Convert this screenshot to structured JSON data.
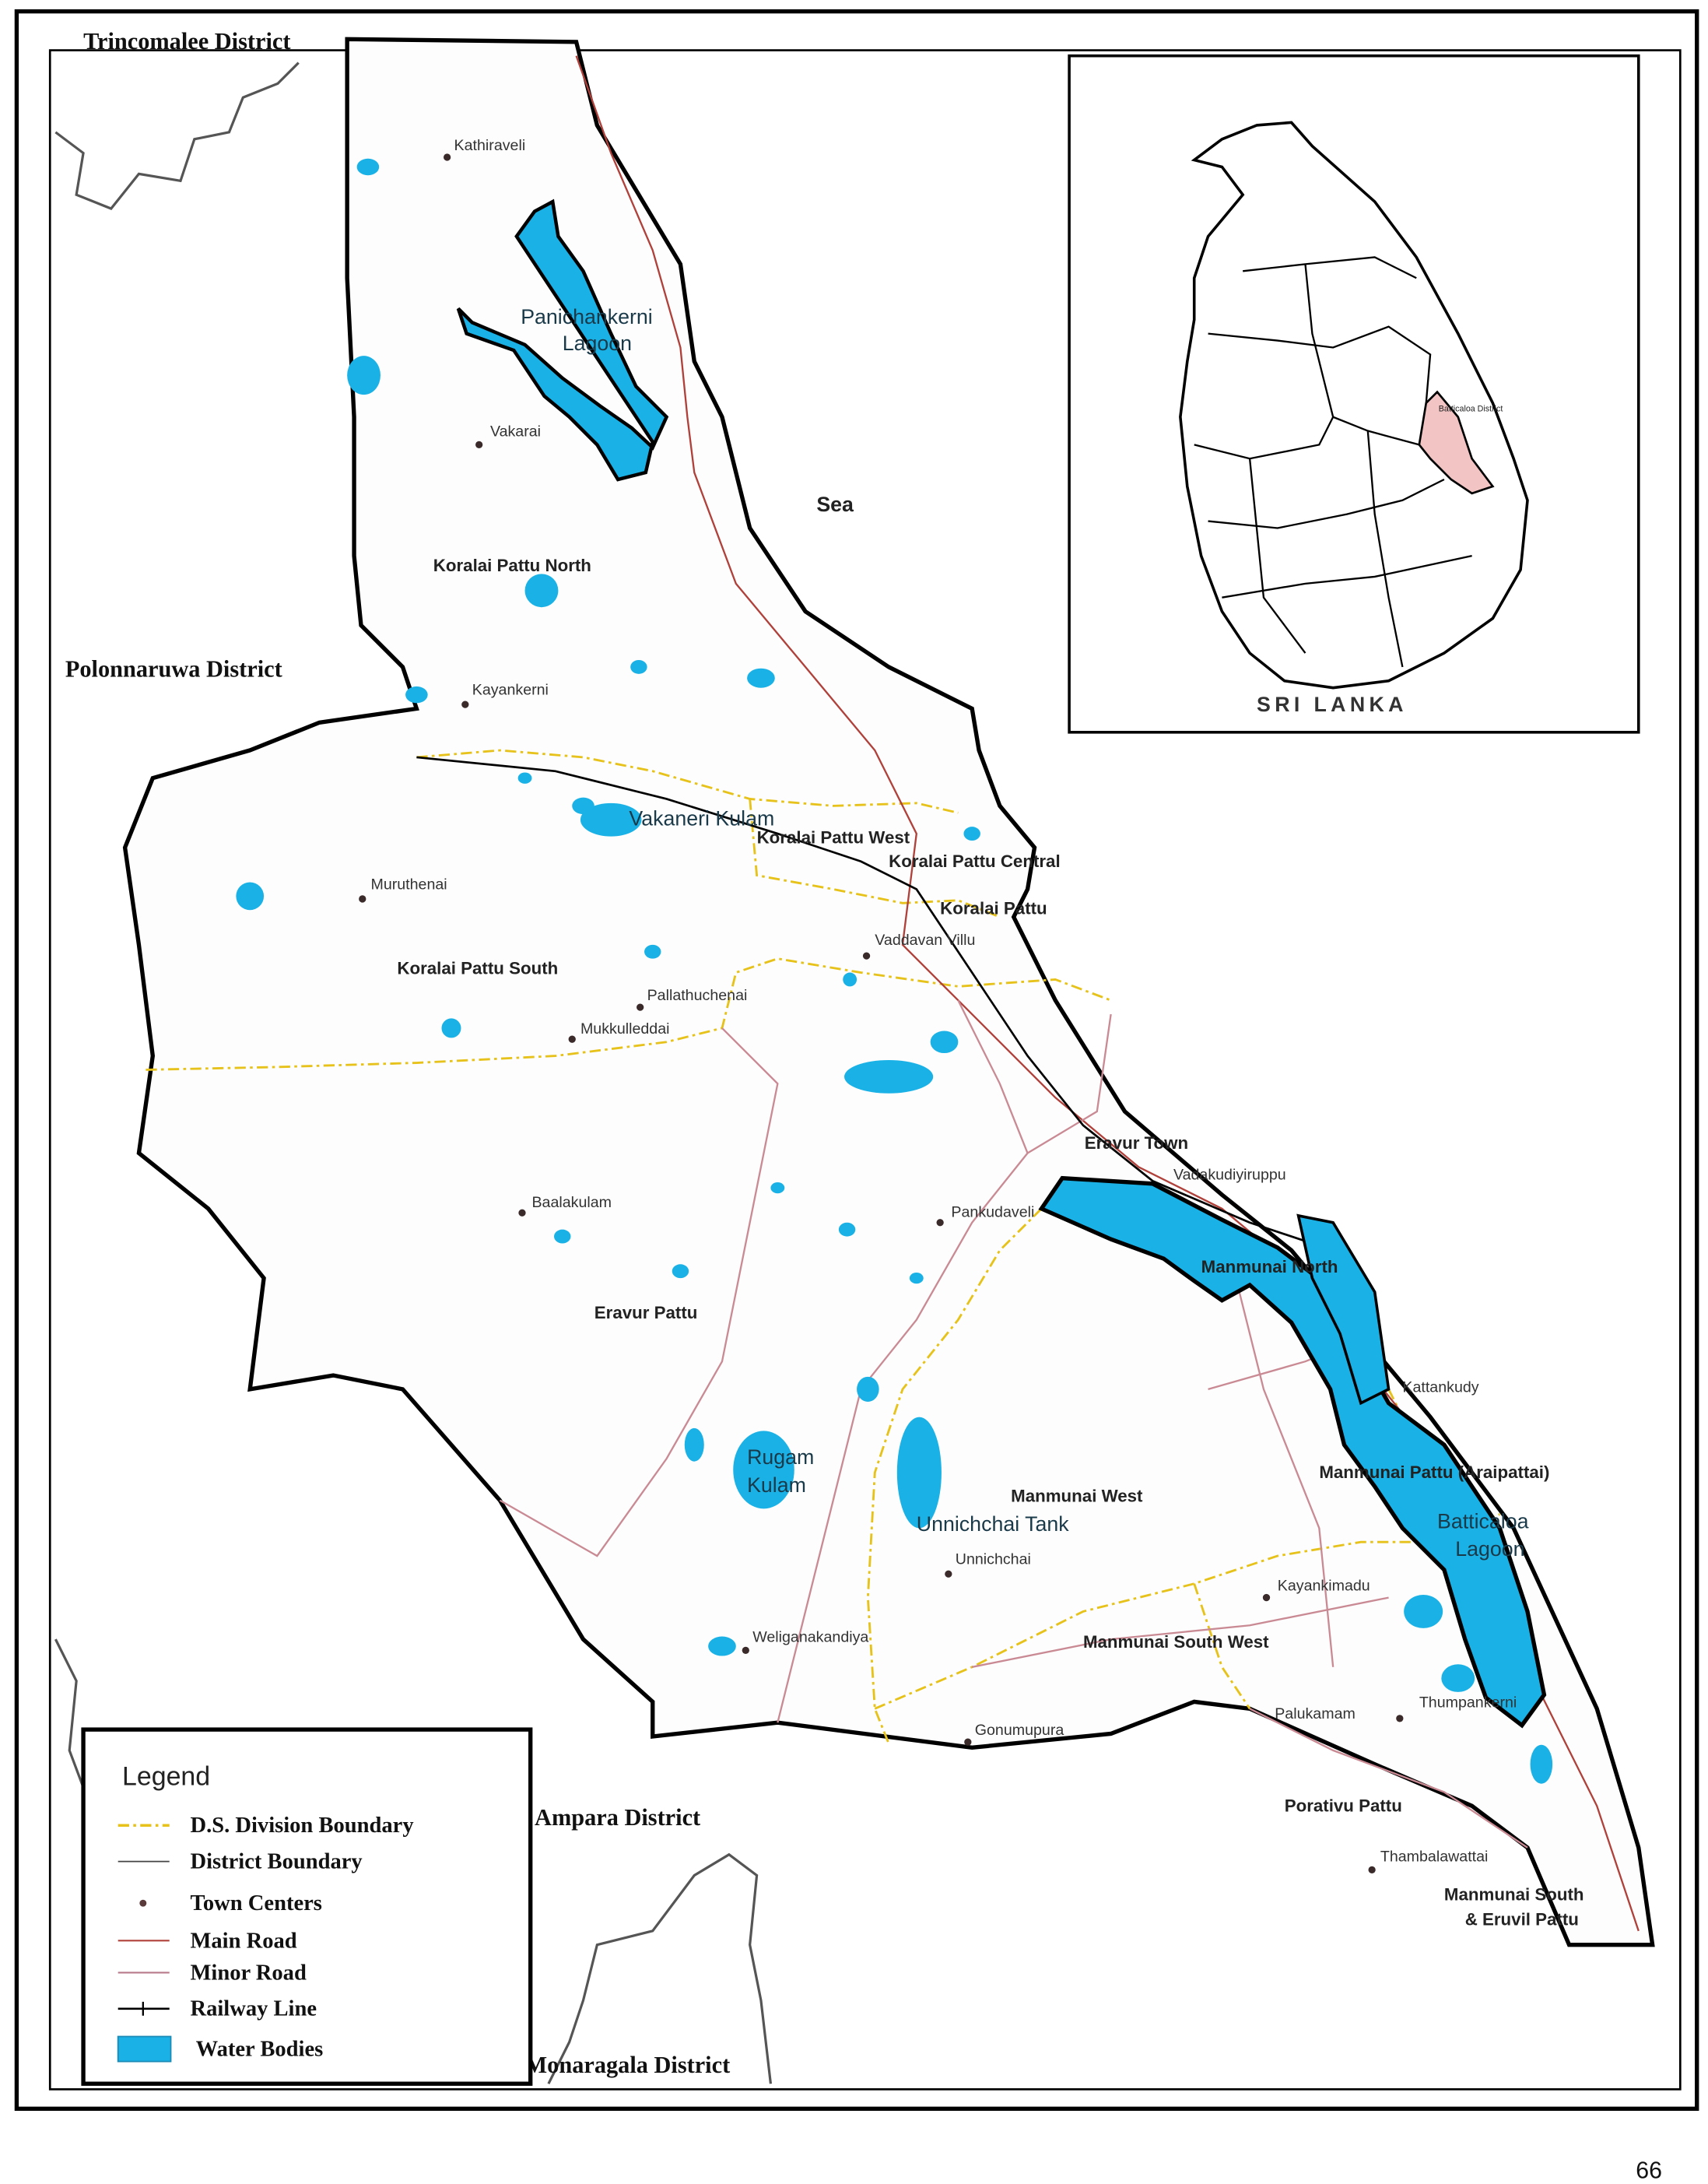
{
  "map": {
    "inset_title": "SRI LANKA",
    "inset_highlight": "Batticaloa District",
    "page_number": "66",
    "neighbours": [
      "Trincomalee District",
      "Polonnaruwa District",
      "Ampara District",
      "Monaragala District"
    ],
    "sea": "Sea",
    "ds_divisions": [
      "Koralai Pattu North",
      "Koralai Pattu West",
      "Koralai Pattu Central",
      "Koralai Pattu",
      "Koralai Pattu South",
      "Eravur Town",
      "Eravur Pattu",
      "Manmunai North",
      "Manmunai West",
      "Manmunai Pattu (Araipattai)",
      "Manmunai South West",
      "Porativu Pattu",
      "Manmunai South",
      "& Eruvil Pattu"
    ],
    "water_bodies": [
      "Panichankerni",
      "Lagoon",
      "Vakaneri Kulam",
      "Rugam",
      "Kulam",
      "Unnichchai Tank",
      "Batticaloa",
      "Lagoon"
    ],
    "towns": [
      "Kathiraveli",
      "Vakarai",
      "Kayankerni",
      "Muruthenai",
      "Vaddavan Villu",
      "Pallathuchenai",
      "Mukkulleddai",
      "Baalakulam",
      "Vadakudiyiruppu",
      "Pankudaveli",
      "Kattankudy",
      "Unnichchai",
      "Weliganakandiya",
      "Kayankimadu",
      "Gonumupura",
      "Palukamam",
      "Thumpankerni",
      "Thambalawattai"
    ]
  },
  "legend": {
    "title": "Legend",
    "items": [
      {
        "label": "D.S. Division Boundary",
        "symbol": "yellow-dashed-line",
        "color": "#e6c21a"
      },
      {
        "label": "District Boundary",
        "symbol": "thin-line",
        "color": "#333333"
      },
      {
        "label": "Town Centers",
        "symbol": "dot",
        "color": "#5a3a3a"
      },
      {
        "label": "Main Road",
        "symbol": "line",
        "color": "#b0403a"
      },
      {
        "label": "Minor Road",
        "symbol": "line",
        "color": "#b87a8a"
      },
      {
        "label": "Railway Line",
        "symbol": "tick-line",
        "color": "#000000"
      },
      {
        "label": "Water Bodies",
        "symbol": "filled-rect",
        "color": "#1ab2e6"
      }
    ]
  },
  "colors": {
    "water": "#1ab2e6",
    "lagoon": "#2aa0d8",
    "highlight": "#f2c4c4",
    "ds_boundary": "#e6c21a",
    "main_road": "#b0403a"
  }
}
